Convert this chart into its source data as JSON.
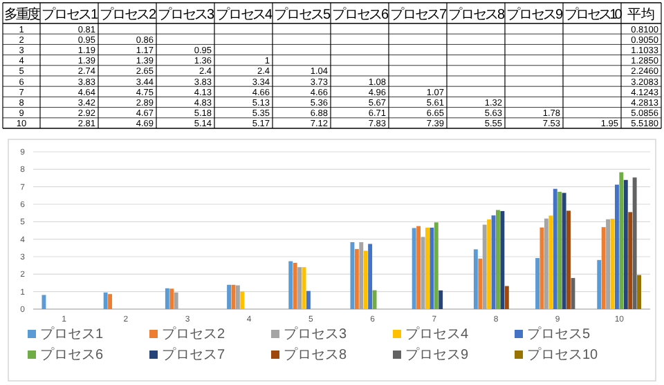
{
  "chart_data": [
    {
      "type": "heatmap",
      "ylabel": "多重度",
      "categories": [
        "プロセス1",
        "プロセス2",
        "プロセス3",
        "プロセス4",
        "プロセス5",
        "プロセス6",
        "プロセス7",
        "プロセス8",
        "プロセス9",
        "プロセス10",
        "平均"
      ],
      "y_categories": [
        "1",
        "2",
        "3",
        "4",
        "5",
        "6",
        "7",
        "8",
        "9",
        "10"
      ],
      "data_labels": true,
      "cells": [
        [
          0.81,
          null,
          null,
          null,
          null,
          null,
          null,
          null,
          null,
          null,
          0.81
        ],
        [
          0.95,
          0.86,
          null,
          null,
          null,
          null,
          null,
          null,
          null,
          null,
          0.905
        ],
        [
          1.19,
          1.17,
          0.95,
          null,
          null,
          null,
          null,
          null,
          null,
          null,
          1.1033
        ],
        [
          1.39,
          1.39,
          1.36,
          1,
          null,
          null,
          null,
          null,
          null,
          null,
          1.285
        ],
        [
          2.74,
          2.65,
          2.4,
          2.4,
          1.04,
          null,
          null,
          null,
          null,
          null,
          2.246
        ],
        [
          3.83,
          3.44,
          3.83,
          3.34,
          3.73,
          1.08,
          null,
          null,
          null,
          null,
          3.2083
        ],
        [
          4.64,
          4.75,
          4.13,
          4.66,
          4.66,
          4.96,
          1.07,
          null,
          null,
          null,
          4.1243
        ],
        [
          3.42,
          2.89,
          4.83,
          5.13,
          5.36,
          5.67,
          5.61,
          1.32,
          null,
          null,
          4.2813
        ],
        [
          2.92,
          4.67,
          5.18,
          5.35,
          6.88,
          6.71,
          6.65,
          5.63,
          1.78,
          null,
          5.0856
        ],
        [
          2.81,
          4.69,
          5.14,
          5.17,
          7.12,
          7.83,
          7.39,
          5.55,
          7.53,
          1.95,
          5.518
        ]
      ],
      "cell_labels": [
        [
          "0.81",
          null,
          null,
          null,
          null,
          null,
          null,
          null,
          null,
          null,
          "0.8100"
        ],
        [
          "0.95",
          "0.86",
          null,
          null,
          null,
          null,
          null,
          null,
          null,
          null,
          "0.9050"
        ],
        [
          "1.19",
          "1.17",
          "0.95",
          null,
          null,
          null,
          null,
          null,
          null,
          null,
          "1.1033"
        ],
        [
          "1.39",
          "1.39",
          "1.36",
          "1",
          null,
          null,
          null,
          null,
          null,
          null,
          "1.2850"
        ],
        [
          "2.74",
          "2.65",
          "2.4",
          "2.4",
          "1.04",
          null,
          null,
          null,
          null,
          null,
          "2.2460"
        ],
        [
          "3.83",
          "3.44",
          "3.83",
          "3.34",
          "3.73",
          "1.08",
          null,
          null,
          null,
          null,
          "3.2083"
        ],
        [
          "4.64",
          "4.75",
          "4.13",
          "4.66",
          "4.66",
          "4.96",
          "1.07",
          null,
          null,
          null,
          "4.1243"
        ],
        [
          "3.42",
          "2.89",
          "4.83",
          "5.13",
          "5.36",
          "5.67",
          "5.61",
          "1.32",
          null,
          null,
          "4.2813"
        ],
        [
          "2.92",
          "4.67",
          "5.18",
          "5.35",
          "6.88",
          "6.71",
          "6.65",
          "5.63",
          "1.78",
          null,
          "5.0856"
        ],
        [
          "2.81",
          "4.69",
          "5.14",
          "5.17",
          "7.12",
          "7.83",
          "7.39",
          "5.55",
          "7.53",
          "1.95",
          "5.5180"
        ]
      ]
    },
    {
      "type": "bar",
      "categories": [
        "1",
        "2",
        "3",
        "4",
        "5",
        "6",
        "7",
        "8",
        "9",
        "10"
      ],
      "series": [
        {
          "name": "プロセス1",
          "color": "#5b9bd5",
          "values": [
            0.81,
            0.95,
            1.19,
            1.39,
            2.74,
            3.83,
            4.64,
            3.42,
            2.92,
            2.81
          ]
        },
        {
          "name": "プロセス2",
          "color": "#ed7d31",
          "values": [
            null,
            0.86,
            1.17,
            1.39,
            2.65,
            3.44,
            4.75,
            2.89,
            4.67,
            4.69
          ]
        },
        {
          "name": "プロセス3",
          "color": "#a5a5a5",
          "values": [
            null,
            null,
            0.95,
            1.36,
            2.4,
            3.83,
            4.13,
            4.83,
            5.18,
            5.14
          ]
        },
        {
          "name": "プロセス4",
          "color": "#ffc000",
          "values": [
            null,
            null,
            null,
            1,
            2.4,
            3.34,
            4.66,
            5.13,
            5.35,
            5.17
          ]
        },
        {
          "name": "プロセス5",
          "color": "#4472c4",
          "values": [
            null,
            null,
            null,
            null,
            1.04,
            3.73,
            4.66,
            5.36,
            6.88,
            7.12
          ]
        },
        {
          "name": "プロセス6",
          "color": "#70ad47",
          "values": [
            null,
            null,
            null,
            null,
            null,
            1.08,
            4.96,
            5.67,
            6.71,
            7.83
          ]
        },
        {
          "name": "プロセス7",
          "color": "#264478",
          "values": [
            null,
            null,
            null,
            null,
            null,
            null,
            1.07,
            5.61,
            6.65,
            7.39
          ]
        },
        {
          "name": "プロセス8",
          "color": "#9e480e",
          "values": [
            null,
            null,
            null,
            null,
            null,
            null,
            null,
            1.32,
            5.63,
            5.55
          ]
        },
        {
          "name": "プロセス9",
          "color": "#636363",
          "values": [
            null,
            null,
            null,
            null,
            null,
            null,
            null,
            null,
            1.78,
            7.53
          ]
        },
        {
          "name": "プロセス10",
          "color": "#997300",
          "values": [
            null,
            null,
            null,
            null,
            null,
            null,
            null,
            null,
            null,
            1.95
          ]
        }
      ],
      "ylim": [
        0,
        9
      ],
      "yticks": [
        0,
        1,
        2,
        3,
        4,
        5,
        6,
        7,
        8,
        9
      ],
      "grid": "y",
      "legend": "bottom"
    }
  ]
}
